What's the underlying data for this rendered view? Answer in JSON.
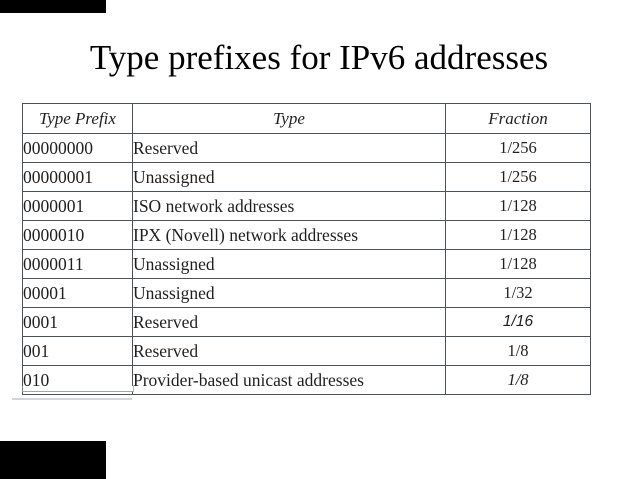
{
  "slide": {
    "title": "Type prefixes for IPv6 addresses"
  },
  "table": {
    "columns": [
      "Type Prefix",
      "Type",
      "Fraction"
    ],
    "rows": [
      {
        "prefix": "00000000",
        "type": "Reserved",
        "fraction": "1/256",
        "fraction_style": "normal"
      },
      {
        "prefix": "00000001",
        "type": "Unassigned",
        "fraction": "1/256",
        "fraction_style": "normal"
      },
      {
        "prefix": "0000001",
        "type": "ISO network addresses",
        "fraction": "1/128",
        "fraction_style": "normal"
      },
      {
        "prefix": "0000010",
        "type": "IPX (Novell) network addresses",
        "fraction": "1/128",
        "fraction_style": "normal"
      },
      {
        "prefix": "0000011",
        "type": "Unassigned",
        "fraction": "1/128",
        "fraction_style": "normal"
      },
      {
        "prefix": "00001",
        "type": "Unassigned",
        "fraction": "1/32",
        "fraction_style": "normal"
      },
      {
        "prefix": "0001",
        "type": "Reserved",
        "fraction": "1/16",
        "fraction_style": "italic-sans"
      },
      {
        "prefix": "001",
        "type": "Reserved",
        "fraction": "1/8",
        "fraction_style": "normal"
      },
      {
        "prefix": "010",
        "type": "Provider-based unicast addresses",
        "fraction": "1/8",
        "fraction_style": "italic"
      }
    ]
  },
  "colors": {
    "background": "#ffffff",
    "text": "#1f1f1f",
    "border": "#4b5258",
    "corner_box": "#000000",
    "patch_edge": "#cfd6da"
  }
}
